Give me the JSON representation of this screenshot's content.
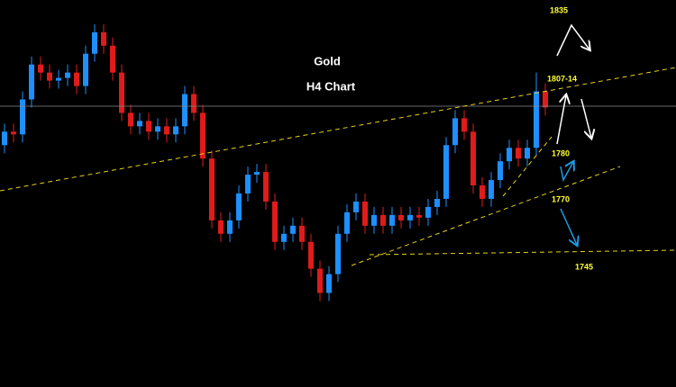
{
  "chart_data": {
    "type": "candlestick",
    "title": "Gold",
    "subtitle": "H4 Chart",
    "annotations": [
      "1835",
      "1807-14",
      "1780",
      "1770",
      "1745"
    ],
    "up_color": "#1e8fff",
    "down_color": "#e01b1b",
    "annotation_color": "#ffff33",
    "top_annotation_color": "#ff3030",
    "ylim": [
      1695,
      1839
    ],
    "open": [
      1785,
      1790,
      1789,
      1802,
      1815,
      1812,
      1809,
      1810,
      1812,
      1807,
      1819,
      1827,
      1822,
      1812,
      1797,
      1792,
      1794,
      1790,
      1792,
      1789,
      1792,
      1804,
      1797,
      1780,
      1757,
      1752,
      1757,
      1767,
      1774,
      1775,
      1764,
      1749,
      1752,
      1755,
      1749,
      1739,
      1730,
      1737,
      1752,
      1760,
      1764,
      1755,
      1759,
      1755,
      1759,
      1757,
      1759,
      1758,
      1762,
      1765,
      1785,
      1795,
      1790,
      1770,
      1765,
      1772,
      1779,
      1784,
      1780,
      1784,
      1805
    ],
    "high": [
      1793,
      1793,
      1805,
      1818,
      1818,
      1815,
      1813,
      1815,
      1815,
      1822,
      1830,
      1830,
      1825,
      1815,
      1800,
      1797,
      1797,
      1795,
      1795,
      1795,
      1807,
      1807,
      1800,
      1783,
      1760,
      1760,
      1770,
      1777,
      1778,
      1778,
      1767,
      1755,
      1758,
      1758,
      1752,
      1742,
      1740,
      1755,
      1763,
      1767,
      1767,
      1762,
      1762,
      1762,
      1762,
      1762,
      1762,
      1765,
      1768,
      1788,
      1798,
      1798,
      1793,
      1773,
      1775,
      1782,
      1787,
      1787,
      1787,
      1812,
      1808
    ],
    "low": [
      1782,
      1786,
      1786,
      1799,
      1809,
      1806,
      1806,
      1807,
      1804,
      1804,
      1816,
      1819,
      1809,
      1794,
      1789,
      1789,
      1787,
      1787,
      1786,
      1786,
      1789,
      1794,
      1777,
      1754,
      1749,
      1749,
      1754,
      1764,
      1771,
      1761,
      1746,
      1746,
      1749,
      1746,
      1736,
      1727,
      1727,
      1734,
      1749,
      1757,
      1752,
      1752,
      1752,
      1752,
      1754,
      1754,
      1755,
      1755,
      1759,
      1762,
      1782,
      1787,
      1767,
      1762,
      1762,
      1769,
      1776,
      1777,
      1777,
      1781,
      1796
    ],
    "close": [
      1790,
      1789,
      1802,
      1815,
      1812,
      1809,
      1810,
      1812,
      1807,
      1819,
      1827,
      1822,
      1812,
      1797,
      1792,
      1794,
      1790,
      1792,
      1789,
      1792,
      1804,
      1797,
      1780,
      1757,
      1752,
      1757,
      1767,
      1774,
      1775,
      1764,
      1749,
      1752,
      1755,
      1749,
      1739,
      1730,
      1737,
      1752,
      1760,
      1764,
      1755,
      1759,
      1755,
      1759,
      1757,
      1759,
      1758,
      1762,
      1765,
      1785,
      1795,
      1790,
      1770,
      1765,
      1772,
      1779,
      1784,
      1780,
      1784,
      1805,
      1799
    ]
  }
}
